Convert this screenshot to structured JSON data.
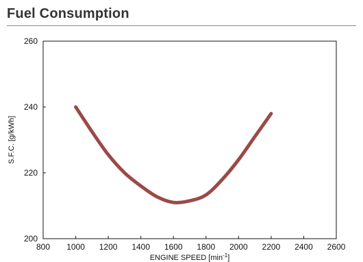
{
  "header": {
    "title": "Fuel Consumption"
  },
  "chart_data": {
    "type": "line",
    "title": "",
    "xlabel": "ENGINE SPEED [min-1]",
    "xlabel_main": "ENGINE SPEED [min",
    "xlabel_sup": "-1",
    "xlabel_close": "]",
    "ylabel": "S.F.C. [g/kWh]",
    "xlim": [
      800,
      2600
    ],
    "ylim": [
      200,
      260
    ],
    "xticks": [
      800,
      1000,
      1200,
      1400,
      1600,
      1800,
      2000,
      2200,
      2400,
      2600
    ],
    "yticks": [
      200,
      220,
      240,
      260
    ],
    "grid": false,
    "series": [
      {
        "color": "#9b4a47",
        "x": [
          1000,
          1100,
          1200,
          1300,
          1400,
          1500,
          1600,
          1700,
          1800,
          1900,
          2000,
          2100,
          2200
        ],
        "y": [
          240,
          232.5,
          225.5,
          220,
          216,
          212.7,
          211,
          211.5,
          213.3,
          218,
          224,
          231,
          238
        ]
      }
    ]
  }
}
